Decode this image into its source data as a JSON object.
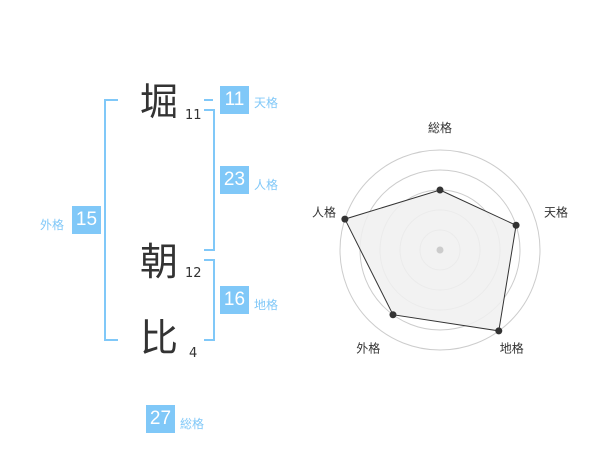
{
  "name": [
    {
      "char": "堀",
      "strokes": "11"
    },
    {
      "char": "朝",
      "strokes": "12"
    },
    {
      "char": "比",
      "strokes": "4"
    }
  ],
  "kaku": {
    "tenkaku": {
      "label": "天格",
      "value": "11"
    },
    "jinkaku": {
      "label": "人格",
      "value": "23"
    },
    "chikaku": {
      "label": "地格",
      "value": "16"
    },
    "gaikaku": {
      "label": "外格",
      "value": "15"
    },
    "soukaku": {
      "label": "総格",
      "value": "27"
    }
  },
  "colors": {
    "accent": "#80c8f8",
    "text": "#333333",
    "fill": "#f0f0f0",
    "grid": "#cccccc"
  },
  "chart_data": {
    "type": "radar",
    "axes": [
      "総格",
      "天格",
      "地格",
      "外格",
      "人格"
    ],
    "values": [
      3,
      4,
      5,
      4,
      5
    ],
    "range": [
      0,
      5
    ],
    "rings": 5
  }
}
